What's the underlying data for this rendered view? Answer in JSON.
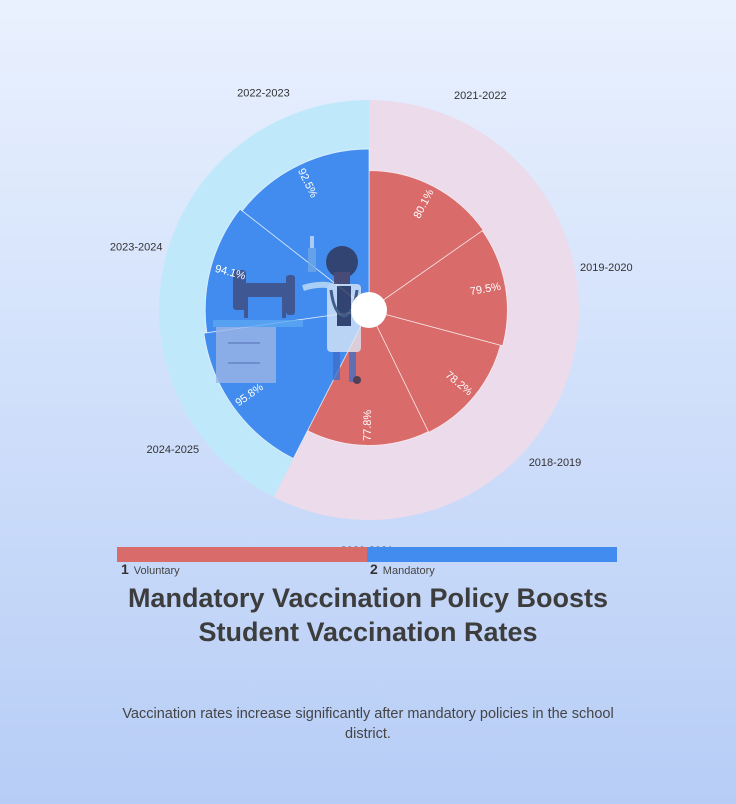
{
  "chart_data": {
    "type": "nightingale-rose",
    "categories": [
      "2018-2019",
      "2019-2020",
      "2020-2021",
      "2021-2022",
      "2022-2023",
      "2023-2024",
      "2024-2025"
    ],
    "values": [
      78.2,
      79.5,
      77.8,
      80.1,
      92.5,
      94.1,
      95.8
    ],
    "value_labels": [
      "78.2%",
      "79.5%",
      "77.8%",
      "80.1%",
      "92.5%",
      "94.1%",
      "95.8%"
    ],
    "series": [
      {
        "label": "1",
        "name": "Voluntary",
        "color": "#d96b6b",
        "band_color": "#ecdbeb",
        "items": [
          "2018-2019",
          "2019-2020",
          "2020-2021",
          "2021-2022"
        ]
      },
      {
        "label": "2",
        "name": "Mandatory",
        "color": "#418cee",
        "band_color": "#c0e8fb",
        "items": [
          "2022-2023",
          "2023-2024",
          "2024-2025"
        ]
      }
    ],
    "ylim": [
      0,
      100
    ]
  },
  "title": "Mandatory Vaccination Policy Boosts Student Vaccination Rates",
  "subtitle": "Vaccination rates increase significantly after mandatory policies in the school district.",
  "illustration": "doctor-with-syringe-and-desk-icon"
}
